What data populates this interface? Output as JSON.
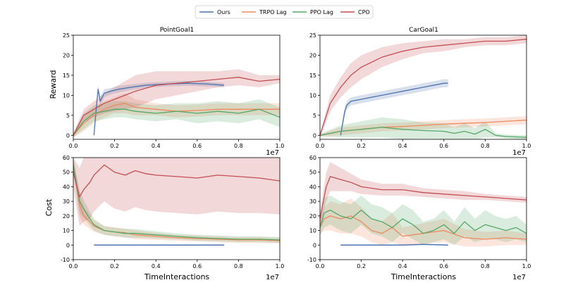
{
  "figure": {
    "legend": {
      "placement": "top-center",
      "entries": [
        {
          "name": "Ours",
          "color": "#4c72b0"
        },
        {
          "name": "TRPO Lag",
          "color": "#ee8a5e"
        },
        {
          "name": "PPO Lag",
          "color": "#55a868"
        },
        {
          "name": "CPO",
          "color": "#c44e52"
        }
      ]
    }
  },
  "chart_data": [
    {
      "id": "pointgoal-reward",
      "type": "line",
      "title": "PointGoal1",
      "xlabel": "",
      "ylabel": "Reward",
      "xlim": [
        0,
        1.0
      ],
      "ylim": [
        -1,
        25
      ],
      "xticks": [
        "0.0",
        "0.2",
        "0.4",
        "0.6",
        "0.8",
        "1.0"
      ],
      "yticks": [
        "0",
        "5",
        "10",
        "15",
        "20",
        "25"
      ],
      "x_exponent": "1e7",
      "series": [
        {
          "name": "Ours",
          "x": [
            0.1,
            0.11,
            0.12,
            0.13,
            0.15,
            0.18,
            0.22,
            0.28,
            0.35,
            0.45,
            0.55,
            0.65,
            0.73
          ],
          "y": [
            0,
            6,
            11.5,
            8.5,
            10.5,
            11,
            11.5,
            12,
            12.5,
            12.8,
            13,
            12.8,
            12.5
          ],
          "band": [
            0.5,
            1,
            1,
            1,
            1,
            0.8,
            0.8,
            0.7,
            0.6,
            0.6,
            0.6,
            0.6,
            0.5
          ]
        },
        {
          "name": "TRPO Lag",
          "x": [
            0,
            0.05,
            0.1,
            0.15,
            0.2,
            0.25,
            0.3,
            0.4,
            0.5,
            0.6,
            0.7,
            0.8,
            0.9,
            1.0
          ],
          "y": [
            0,
            3,
            5,
            6.5,
            7.5,
            8,
            7,
            6.5,
            6,
            6.2,
            6.5,
            6.5,
            6.5,
            6.5
          ],
          "band": [
            0.5,
            2,
            2,
            2,
            2,
            2.5,
            2,
            1.5,
            1.5,
            1.5,
            1.5,
            1.5,
            1.5,
            1.5
          ]
        },
        {
          "name": "PPO Lag",
          "x": [
            0,
            0.05,
            0.1,
            0.15,
            0.2,
            0.25,
            0.3,
            0.4,
            0.5,
            0.6,
            0.7,
            0.8,
            0.9,
            1.0
          ],
          "y": [
            0,
            3.5,
            5.5,
            6,
            6.5,
            6.5,
            6,
            5.5,
            6,
            5.5,
            6,
            5.5,
            6.5,
            4.5
          ],
          "band": [
            0.5,
            2,
            2,
            2,
            2,
            2,
            2,
            2,
            2,
            2.5,
            2.5,
            2.5,
            2.5,
            2.5
          ]
        },
        {
          "name": "CPO",
          "x": [
            0,
            0.05,
            0.1,
            0.15,
            0.2,
            0.25,
            0.3,
            0.4,
            0.5,
            0.6,
            0.7,
            0.8,
            0.9,
            1.0
          ],
          "y": [
            0,
            5,
            6.5,
            8,
            9,
            10,
            11,
            12.5,
            13,
            13.5,
            14,
            14.5,
            13.5,
            14
          ],
          "band": [
            0.5,
            1.5,
            2,
            2.5,
            3,
            3.5,
            4,
            3.5,
            3,
            2.5,
            2,
            2,
            1.5,
            1
          ]
        }
      ]
    },
    {
      "id": "cargoal-reward",
      "type": "line",
      "title": "CarGoal1",
      "xlabel": "",
      "ylabel": "",
      "xlim": [
        0,
        1.0
      ],
      "ylim": [
        -1,
        25
      ],
      "xticks": [
        "0.0",
        "0.2",
        "0.4",
        "0.6",
        "0.8",
        "1.0"
      ],
      "yticks": [
        "0",
        "5",
        "10",
        "15",
        "20",
        "25"
      ],
      "x_exponent": "1e7",
      "series": [
        {
          "name": "Ours",
          "x": [
            0.1,
            0.11,
            0.12,
            0.13,
            0.15,
            0.2,
            0.25,
            0.3,
            0.35,
            0.4,
            0.45,
            0.5,
            0.55,
            0.6,
            0.62
          ],
          "y": [
            0,
            3,
            6,
            7.5,
            8.5,
            9,
            9.5,
            10,
            10.5,
            11,
            11.5,
            12,
            12.5,
            13,
            13
          ],
          "band": [
            0.5,
            1,
            1,
            1,
            1,
            1,
            1,
            1,
            1,
            1,
            1,
            1,
            1,
            1,
            1
          ]
        },
        {
          "name": "TRPO Lag",
          "x": [
            0,
            0.1,
            0.2,
            0.3,
            0.4,
            0.5,
            0.6,
            0.7,
            0.8,
            0.9,
            1.0
          ],
          "y": [
            0,
            1,
            1.5,
            2,
            2.2,
            2.5,
            2.8,
            3,
            3.2,
            3.5,
            3.8
          ],
          "band": [
            0.3,
            1,
            1,
            1,
            1,
            1,
            1,
            1,
            1,
            1,
            1
          ]
        },
        {
          "name": "PPO Lag",
          "x": [
            0,
            0.1,
            0.2,
            0.3,
            0.4,
            0.5,
            0.6,
            0.65,
            0.7,
            0.75,
            0.8,
            0.85,
            0.9,
            1.0
          ],
          "y": [
            0,
            1,
            1.5,
            2,
            1.5,
            1.2,
            1,
            0.5,
            1,
            0.3,
            1.5,
            0,
            -0.3,
            -0.5
          ],
          "band": [
            0.3,
            1.5,
            2,
            2.5,
            2.5,
            2,
            2,
            1.5,
            2,
            1.5,
            2,
            0.5,
            0.5,
            0.5
          ]
        },
        {
          "name": "CPO",
          "x": [
            0,
            0.05,
            0.1,
            0.15,
            0.2,
            0.3,
            0.4,
            0.5,
            0.6,
            0.7,
            0.8,
            0.9,
            1.0
          ],
          "y": [
            0,
            8,
            12,
            15,
            17,
            19.5,
            21,
            22,
            22.5,
            23,
            23.5,
            23.5,
            24
          ],
          "band": [
            0.5,
            2,
            2.5,
            3,
            3,
            2.5,
            2,
            1.5,
            1.5,
            1,
            1,
            1,
            1
          ]
        }
      ]
    },
    {
      "id": "pointgoal-cost",
      "type": "line",
      "title": "",
      "xlabel": "TimeInteractions",
      "ylabel": "Cost",
      "xlim": [
        0,
        1.0
      ],
      "ylim": [
        -10,
        60
      ],
      "xticks": [
        "0.0",
        "0.2",
        "0.4",
        "0.6",
        "0.8",
        "1.0"
      ],
      "yticks": [
        "-10",
        "0",
        "10",
        "20",
        "30",
        "40",
        "50",
        "60"
      ],
      "x_exponent": "1e7",
      "series": [
        {
          "name": "Ours",
          "x": [
            0.1,
            0.2,
            0.3,
            0.4,
            0.5,
            0.6,
            0.73
          ],
          "y": [
            0,
            0,
            0,
            0,
            0,
            0,
            0
          ],
          "band": [
            0.5,
            0.5,
            0.5,
            0.5,
            0.5,
            0.5,
            0.5
          ]
        },
        {
          "name": "TRPO Lag",
          "x": [
            0,
            0.03,
            0.05,
            0.08,
            0.1,
            0.15,
            0.2,
            0.25,
            0.3,
            0.4,
            0.5,
            0.6,
            0.7,
            0.8,
            0.9,
            1.0
          ],
          "y": [
            55,
            28,
            20,
            16,
            13,
            10,
            9,
            8.5,
            7,
            6,
            5,
            4.5,
            4,
            3.5,
            3.5,
            3
          ],
          "band": [
            5,
            8,
            6,
            5,
            4,
            3,
            3,
            3,
            3,
            2.5,
            2,
            2,
            2,
            2,
            2,
            2
          ]
        },
        {
          "name": "PPO Lag",
          "x": [
            0,
            0.03,
            0.05,
            0.08,
            0.1,
            0.15,
            0.2,
            0.25,
            0.3,
            0.4,
            0.5,
            0.6,
            0.7,
            0.8,
            0.9,
            1.0
          ],
          "y": [
            55,
            30,
            25,
            18,
            14,
            10,
            9,
            8,
            8,
            7,
            6,
            5,
            4.5,
            4,
            4,
            3.5
          ],
          "band": [
            5,
            8,
            6,
            5,
            4,
            3,
            3,
            3,
            3,
            2.5,
            2,
            2,
            2,
            2,
            2,
            2
          ]
        },
        {
          "name": "CPO",
          "x": [
            0,
            0.03,
            0.05,
            0.08,
            0.1,
            0.15,
            0.2,
            0.25,
            0.3,
            0.35,
            0.4,
            0.5,
            0.6,
            0.7,
            0.8,
            0.9,
            1.0
          ],
          "y": [
            50,
            33,
            38,
            43,
            48,
            55,
            50,
            48,
            51,
            49,
            48,
            47,
            46,
            48,
            47,
            46,
            44
          ],
          "band": [
            10,
            20,
            22,
            25,
            25,
            25,
            25,
            25,
            25,
            25,
            25,
            25,
            25,
            25,
            25,
            24,
            23
          ]
        }
      ]
    },
    {
      "id": "cargoal-cost",
      "type": "line",
      "title": "",
      "xlabel": "TimeInteractions",
      "ylabel": "",
      "xlim": [
        0,
        1.0
      ],
      "ylim": [
        -10,
        60
      ],
      "xticks": [
        "0.0",
        "0.2",
        "0.4",
        "0.6",
        "0.8",
        "1.0"
      ],
      "yticks": [
        "-10",
        "0",
        "10",
        "20",
        "30",
        "40",
        "50",
        "60"
      ],
      "x_exponent": "1e7",
      "series": [
        {
          "name": "Ours",
          "x": [
            0.1,
            0.2,
            0.3,
            0.4,
            0.5,
            0.62
          ],
          "y": [
            0,
            0,
            0,
            0,
            0.5,
            0
          ],
          "band": [
            0.5,
            0.5,
            0.5,
            0.5,
            0.5,
            0.5
          ]
        },
        {
          "name": "TRPO Lag",
          "x": [
            0,
            0.02,
            0.05,
            0.1,
            0.15,
            0.2,
            0.25,
            0.3,
            0.35,
            0.4,
            0.5,
            0.6,
            0.7,
            0.8,
            0.9,
            1.0
          ],
          "y": [
            12,
            18,
            20,
            18,
            20,
            16,
            10,
            8,
            12,
            6,
            8,
            10,
            5,
            4,
            5,
            4
          ],
          "band": [
            5,
            8,
            10,
            10,
            12,
            10,
            8,
            8,
            10,
            6,
            7,
            8,
            6,
            5,
            5,
            4
          ]
        },
        {
          "name": "PPO Lag",
          "x": [
            0,
            0.02,
            0.05,
            0.1,
            0.15,
            0.2,
            0.25,
            0.3,
            0.35,
            0.4,
            0.45,
            0.5,
            0.55,
            0.6,
            0.65,
            0.7,
            0.75,
            0.8,
            0.85,
            0.9,
            0.95,
            1.0
          ],
          "y": [
            12,
            22,
            24,
            20,
            18,
            24,
            18,
            16,
            12,
            18,
            14,
            8,
            10,
            14,
            8,
            16,
            10,
            14,
            12,
            10,
            12,
            8
          ],
          "band": [
            5,
            10,
            10,
            10,
            10,
            10,
            10,
            10,
            10,
            10,
            10,
            8,
            8,
            10,
            8,
            10,
            8,
            10,
            8,
            8,
            8,
            6
          ]
        },
        {
          "name": "CPO",
          "x": [
            0,
            0.03,
            0.05,
            0.1,
            0.15,
            0.2,
            0.3,
            0.4,
            0.5,
            0.6,
            0.7,
            0.8,
            0.9,
            1.0
          ],
          "y": [
            18,
            40,
            47,
            45,
            43,
            40,
            38,
            38,
            36,
            35,
            34,
            33,
            32,
            31
          ],
          "band": [
            5,
            10,
            10,
            8,
            6,
            5,
            4,
            4,
            3,
            3,
            3,
            2,
            2,
            2
          ]
        }
      ]
    }
  ]
}
